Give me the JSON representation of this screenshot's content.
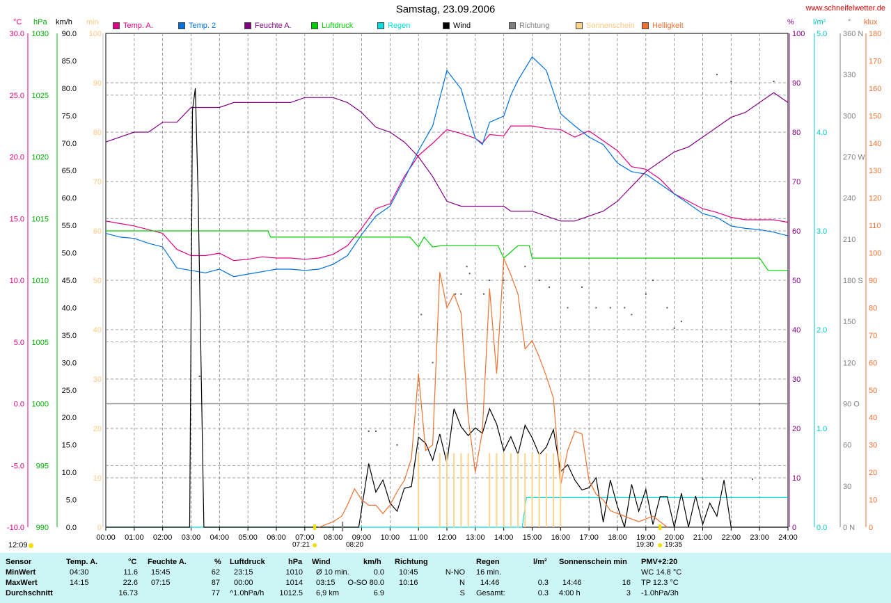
{
  "title": "Samstag, 23.09.2006",
  "site": "www.schneifelwetter.de",
  "time_stamp": "12:09",
  "units_left": [
    "°C",
    "hPa",
    "km/h",
    "min"
  ],
  "units_right": [
    "%",
    "l/m²",
    "°",
    "klux"
  ],
  "legend": [
    {
      "label": "Temp. A.",
      "color": "#e0007f"
    },
    {
      "label": "Temp. 2",
      "color": "#0070e0"
    },
    {
      "label": "Feuchte A.",
      "color": "#800080"
    },
    {
      "label": "Luftdruck",
      "color": "#00d000"
    },
    {
      "label": "Regen",
      "color": "#00e0e0"
    },
    {
      "label": "Wind",
      "color": "#000000"
    },
    {
      "label": "Richtung",
      "color": "#808080"
    },
    {
      "label": "Sonnenschein",
      "color": "#ffd38a"
    },
    {
      "label": "Helligkeit",
      "color": "#f07030"
    }
  ],
  "sun_times": {
    "rise": "07:21",
    "noon": "08:20",
    "set": "19:30",
    "set2": "19:35"
  },
  "chart_data": {
    "type": "line",
    "title": "Samstag, 23.09.2006",
    "x_ticks": [
      "00:00",
      "01:00",
      "02:00",
      "03:00",
      "04:00",
      "05:00",
      "06:00",
      "07:00",
      "08:00",
      "09:00",
      "10:00",
      "11:00",
      "12:00",
      "13:00",
      "14:00",
      "15:00",
      "16:00",
      "17:00",
      "18:00",
      "19:00",
      "20:00",
      "21:00",
      "22:00",
      "23:00",
      "24:00"
    ],
    "axes": {
      "temp": {
        "label": "°C",
        "min": -10,
        "max": 30,
        "ticks": [
          "30.0",
          "25.0",
          "20.0",
          "15.0",
          "10.0",
          "5.0",
          "0.0",
          "-5.0",
          "-10.0"
        ],
        "color": "#e0007f"
      },
      "pressure": {
        "label": "hPa",
        "min": 990,
        "max": 1030,
        "ticks": [
          "1030",
          "1025",
          "1020",
          "1015",
          "1010",
          "1005",
          "1000",
          "995",
          "990"
        ],
        "color": "#00b000"
      },
      "wind": {
        "label": "km/h",
        "min": 0,
        "max": 90,
        "ticks": [
          "90.0",
          "85.0",
          "80.0",
          "75.0",
          "70.0",
          "65.0",
          "60.0",
          "55.0",
          "50.0",
          "45.0",
          "40.0",
          "35.0",
          "30.0",
          "25.0",
          "20.0",
          "15.0",
          "10.0",
          "5.0",
          "0.0"
        ],
        "color": "#000000"
      },
      "sun_min": {
        "label": "min",
        "min": 0,
        "max": 100,
        "ticks": [
          "100",
          "90",
          "80",
          "70",
          "60",
          "50",
          "40",
          "30",
          "20",
          "10",
          "0"
        ],
        "color": "#ffc880"
      },
      "humidity": {
        "label": "%",
        "min": 0,
        "max": 100,
        "ticks": [
          "100",
          "90",
          "80",
          "70",
          "60",
          "50",
          "40",
          "30",
          "20",
          "10",
          "0"
        ],
        "color": "#800080"
      },
      "rain": {
        "label": "l/m²",
        "min": 0,
        "max": 5,
        "ticks": [
          "5.0",
          "4.0",
          "3.0",
          "2.0",
          "1.0",
          "0.0"
        ],
        "color": "#00c8c8"
      },
      "direction": {
        "label": "°",
        "min": 0,
        "max": 360,
        "ticks": [
          "360 N",
          "330",
          "300",
          "270 W",
          "240",
          "210",
          "180 S",
          "150",
          "120",
          "90 O",
          "60",
          "30",
          "0 N"
        ],
        "color": "#808080"
      },
      "lux": {
        "label": "klux",
        "min": 0,
        "max": 180,
        "ticks": [
          "180",
          "170",
          "160",
          "150",
          "140",
          "130",
          "120",
          "110",
          "100",
          "90",
          "80",
          "70",
          "60",
          "50",
          "40",
          "30",
          "20",
          "10",
          "0"
        ],
        "color": "#f07030"
      }
    },
    "series": [
      {
        "name": "Temp. A.",
        "axis": "temp",
        "color": "#e0007f",
        "x": [
          0,
          0.5,
          1,
          1.5,
          2,
          2.5,
          3,
          3.5,
          4,
          4.5,
          5,
          5.5,
          6,
          6.5,
          7,
          7.5,
          8,
          8.5,
          9,
          9.5,
          10,
          10.5,
          11,
          11.5,
          12,
          12.5,
          13,
          13.25,
          13.5,
          14,
          14.25,
          14.5,
          15,
          15.5,
          16,
          16.5,
          17,
          17.5,
          18,
          18.5,
          19,
          19.5,
          20,
          20.5,
          21,
          21.5,
          22,
          22.5,
          23,
          23.5,
          24
        ],
        "y": [
          14.8,
          14.6,
          14.4,
          14.1,
          13.8,
          12.5,
          12.0,
          12.0,
          12.2,
          11.6,
          11.7,
          11.9,
          11.8,
          11.8,
          11.7,
          11.8,
          12.1,
          12.8,
          14.2,
          15.8,
          16.2,
          18.4,
          20.1,
          21.1,
          22.2,
          21.9,
          21.5,
          21.1,
          21.8,
          21.7,
          22.5,
          22.5,
          22.5,
          22.3,
          22.2,
          21.6,
          22.1,
          21.3,
          20.5,
          19.2,
          19.0,
          18.2,
          17.0,
          16.4,
          15.8,
          15.5,
          15.1,
          14.9,
          14.9,
          14.9,
          14.7
        ]
      },
      {
        "name": "Temp. 2",
        "axis": "temp",
        "color": "#0070e0",
        "x": [
          0,
          0.5,
          1,
          1.5,
          2,
          2.5,
          3,
          3.5,
          4,
          4.5,
          5,
          5.5,
          6,
          6.5,
          7,
          7.5,
          8,
          8.5,
          9,
          9.5,
          10,
          10.5,
          11,
          11.5,
          12,
          12.5,
          13,
          13.25,
          13.5,
          14,
          14.25,
          14.5,
          15,
          15.5,
          16,
          16.5,
          17,
          17.5,
          18,
          18.5,
          19,
          19.5,
          20,
          20.5,
          21,
          21.5,
          22,
          22.5,
          23,
          23.5,
          24
        ],
        "y": [
          13.8,
          13.5,
          13.4,
          13.0,
          12.7,
          11.0,
          10.8,
          10.6,
          10.9,
          10.3,
          10.5,
          10.7,
          10.9,
          10.9,
          10.8,
          10.9,
          11.3,
          12.0,
          13.7,
          15.2,
          16.0,
          18.2,
          20.5,
          22.5,
          27.0,
          25.5,
          21.5,
          21.0,
          22.8,
          23.3,
          25.0,
          26.2,
          28.1,
          27.0,
          23.5,
          22.5,
          21.6,
          21.0,
          19.5,
          18.8,
          18.6,
          17.8,
          17.0,
          16.2,
          15.4,
          15.1,
          14.4,
          14.2,
          14.1,
          13.9,
          13.6
        ]
      },
      {
        "name": "Feuchte A.",
        "axis": "humidity",
        "color": "#800080",
        "x": [
          0,
          0.5,
          1,
          1.5,
          2,
          2.5,
          3,
          3.5,
          4,
          4.5,
          5,
          5.5,
          6,
          6.5,
          7,
          7.5,
          8,
          8.5,
          9,
          9.5,
          10,
          10.5,
          11,
          11.5,
          12,
          12.5,
          13,
          13.25,
          13.5,
          14,
          14.25,
          14.5,
          15,
          15.5,
          16,
          16.5,
          17,
          17.5,
          18,
          18.5,
          19,
          19.5,
          20,
          20.5,
          21,
          21.5,
          22,
          22.5,
          23,
          23.5,
          24
        ],
        "y": [
          78,
          79,
          80,
          80,
          82,
          82,
          85,
          85,
          85,
          86,
          86,
          86,
          86,
          86,
          87,
          87,
          87,
          86,
          84,
          81,
          80,
          78,
          75,
          71,
          66,
          65,
          65,
          65,
          65,
          65,
          64,
          64,
          64,
          63,
          62,
          62,
          63,
          64,
          66,
          69,
          72,
          74,
          76,
          77,
          79,
          81,
          83,
          84,
          86,
          88,
          86
        ]
      },
      {
        "name": "Luftdruck",
        "axis": "pressure",
        "color": "#00d000",
        "x": [
          0,
          5.7,
          5.8,
          9,
          10.7,
          11,
          11.2,
          11.5,
          11.8,
          12,
          13.8,
          14,
          14.5,
          14.9,
          15,
          23,
          23.3,
          24
        ],
        "y": [
          1014,
          1014,
          1013.5,
          1013.5,
          1013.5,
          1012.7,
          1013.5,
          1012.7,
          1012.8,
          1012.8,
          1012.8,
          1011.8,
          1012.8,
          1012.8,
          1011.8,
          1011.8,
          1010.8,
          1010.8
        ]
      },
      {
        "name": "Regen",
        "axis": "rain",
        "color": "#00e0e0",
        "x": [
          0,
          14.65,
          14.8,
          24
        ],
        "y": [
          0,
          0,
          0.3,
          0.3
        ]
      },
      {
        "name": "Wind",
        "axis": "wind",
        "color": "#000000",
        "x": [
          0,
          2.95,
          3.05,
          3.15,
          3.25,
          3.35,
          3.45,
          3.5,
          8.9,
          9.25,
          9.5,
          9.75,
          10,
          10.25,
          10.5,
          10.75,
          11,
          11.25,
          11.5,
          11.75,
          12,
          12.25,
          12.5,
          12.75,
          13,
          13.25,
          13.5,
          13.75,
          14,
          14.25,
          14.5,
          14.75,
          15,
          15.25,
          15.5,
          15.75,
          16,
          16.25,
          16.5,
          16.75,
          17,
          17.25,
          17.5,
          17.75,
          18,
          18.25,
          18.5,
          18.75,
          19,
          19.25,
          19.5,
          19.75,
          20,
          20.25,
          20.5,
          20.75,
          21,
          21.25,
          21.5,
          21.75,
          22,
          22.25,
          22.5,
          22.75,
          23,
          23.25,
          23.5,
          23.75,
          24
        ],
        "y": [
          0,
          0,
          76,
          80,
          60,
          30,
          0,
          0,
          0,
          11.6,
          6.4,
          8.6,
          4.4,
          2.9,
          7.1,
          7.4,
          16.4,
          15.3,
          12.2,
          17,
          11.7,
          21.6,
          18.3,
          16.7,
          18.1,
          17.1,
          21.6,
          18.8,
          13.9,
          16.5,
          13.3,
          18.6,
          16.3,
          13.2,
          14.6,
          17.8,
          10.1,
          11.4,
          8.6,
          6.8,
          7.2,
          9.0,
          0.9,
          8.6,
          3.8,
          0,
          7.8,
          2.9,
          6.9,
          0.5,
          5.6,
          5.6,
          0,
          6.2,
          0,
          5.7,
          0.5,
          4.4,
          2.0,
          8.6,
          0,
          0,
          0,
          0,
          0,
          0,
          0,
          0,
          0
        ]
      },
      {
        "name": "Helligkeit",
        "axis": "lux",
        "color": "#f07030",
        "x": [
          7.5,
          8,
          8.3,
          8.5,
          8.75,
          9,
          9.25,
          9.5,
          9.75,
          10,
          10.25,
          10.5,
          10.75,
          11,
          11.25,
          11.5,
          11.75,
          12,
          12.25,
          12.5,
          12.75,
          13,
          13.25,
          13.5,
          13.75,
          14,
          14.25,
          14.5,
          14.75,
          15,
          15.25,
          15.5,
          15.75,
          16,
          16.25,
          16.5,
          16.75,
          17,
          17.25,
          17.5,
          17.75,
          18,
          18.25,
          18.5,
          18.75,
          19,
          19.25,
          19.5,
          19.75
        ],
        "y": [
          0,
          2,
          4,
          8,
          14,
          10,
          8,
          8,
          5,
          8,
          13,
          17,
          25,
          56,
          28,
          30,
          93,
          80,
          85,
          78,
          40,
          20,
          35,
          87,
          56,
          98,
          92,
          85,
          65,
          68,
          62,
          55,
          47,
          15,
          28,
          35,
          34,
          17,
          12,
          10,
          6,
          5,
          4,
          3,
          2,
          3,
          4,
          2,
          0
        ]
      },
      {
        "name": "Sonnenschein",
        "axis": "sun_min",
        "color": "#ffd38a",
        "bars": true,
        "x": [
          11,
          11.75,
          12,
          12.25,
          12.5,
          12.75,
          13.5,
          13.75,
          14,
          14.25,
          14.5,
          14.75,
          15,
          15.25,
          15.5,
          15.75,
          16
        ],
        "y": [
          15,
          15,
          15,
          15,
          15,
          15,
          15,
          15,
          15,
          15,
          15,
          15,
          15,
          15,
          15,
          15,
          15
        ]
      },
      {
        "name": "Richtung",
        "axis": "direction",
        "color": "#808080",
        "points": true,
        "x": [
          3.3,
          9.25,
          9.5,
          10.25,
          11.1,
          11.5,
          12.3,
          12.5,
          12.8,
          12.7,
          13.3,
          13.5,
          14,
          14.75,
          15.25,
          15.6,
          16.25,
          16.75,
          17.25,
          17.75,
          18.25,
          18.5,
          19,
          19.25,
          19.75,
          20,
          20.25,
          21,
          21.5,
          22,
          22.75,
          23,
          23.5
        ],
        "y": [
          110,
          70,
          70,
          60,
          155,
          120,
          170,
          170,
          185,
          190,
          170,
          180,
          180,
          190,
          180,
          175,
          160,
          175,
          160,
          160,
          160,
          155,
          170,
          180,
          160,
          145,
          150,
          35,
          330,
          325,
          35,
          90,
          325
        ]
      }
    ]
  },
  "stats": {
    "headers": [
      "Sensor",
      "Temp. A.",
      "°C",
      "Feuchte A.",
      "%",
      "Luftdruck",
      "hPa",
      "Wind",
      "km/h",
      "Richtung",
      "Regen",
      "l/m²",
      "Sonnenschein min",
      "PMV+2:20"
    ],
    "row_labels": [
      "MinWert",
      "MaxWert",
      "Durchschnitt"
    ],
    "temp": [
      [
        "04:30",
        "11.6"
      ],
      [
        "14:15",
        "22.6"
      ],
      [
        "",
        "16.73"
      ]
    ],
    "hum": [
      [
        "15:45",
        "62"
      ],
      [
        "07:15",
        "87"
      ],
      [
        "",
        "77"
      ]
    ],
    "press": [
      [
        "23:15",
        "1010"
      ],
      [
        "00:00",
        "1014"
      ],
      [
        "^1.0hPa/h",
        "1012.5"
      ]
    ],
    "wind": [
      [
        "Ø 10 min.",
        "0.0"
      ],
      [
        "03:15",
        "O-SO 80.0"
      ],
      [
        "6,9 km",
        "6.9"
      ]
    ],
    "dir": [
      [
        "10:45",
        "N-NO"
      ],
      [
        "10:16",
        "N"
      ],
      [
        "",
        "S"
      ]
    ],
    "rain": [
      [
        "16 min.",
        ""
      ],
      [
        "14:46",
        "0.3"
      ],
      [
        "Gesamt:",
        "0.3"
      ]
    ],
    "sun": [
      [
        "",
        ""
      ],
      [
        "14:46",
        "16"
      ],
      [
        "4:00 h",
        "3"
      ]
    ],
    "pmv": [
      "WC 14.8 °C",
      "TP 12.3 °C",
      "-1.0hPa/3h"
    ]
  }
}
